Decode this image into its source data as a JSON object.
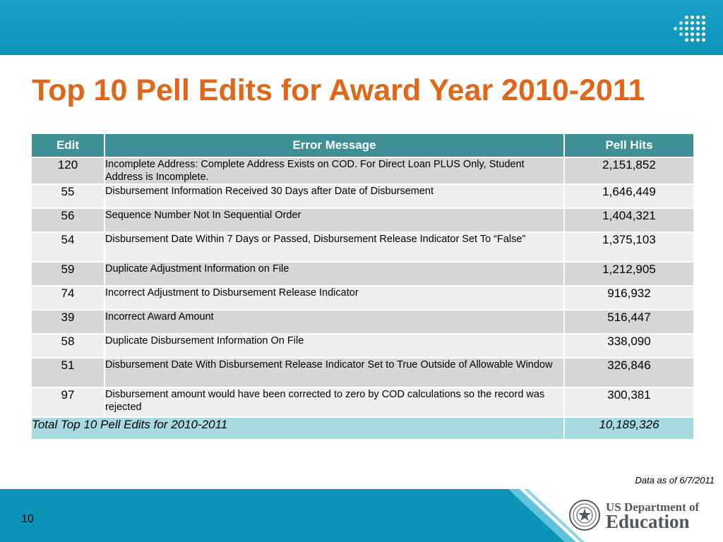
{
  "slide": {
    "title": "Top 10 Pell Edits for Award Year 2010-2011",
    "page_number": "10",
    "data_note": "Data as of 6/7/2011"
  },
  "table": {
    "headers": [
      "Edit",
      "Error Message",
      "Pell Hits"
    ],
    "rows": [
      {
        "edit": "120",
        "message": "Incomplete Address: Complete Address Exists on COD.  For Direct Loan PLUS Only, Student Address is Incomplete.",
        "hits": "2,151,852"
      },
      {
        "edit": "55",
        "message": "Disbursement Information Received 30 Days after Date of Disbursement",
        "hits": "1,646,449"
      },
      {
        "edit": "56",
        "message": "Sequence Number Not In Sequential Order",
        "hits": "1,404,321"
      },
      {
        "edit": "54",
        "message": "Disbursement Date Within 7 Days or Passed, Disbursement Release Indicator Set To “False”",
        "hits": "1,375,103"
      },
      {
        "edit": "59",
        "message": "Duplicate Adjustment Information on File",
        "hits": "1,212,905"
      },
      {
        "edit": "74",
        "message": "Incorrect Adjustment to Disbursement Release Indicator",
        "hits": "916,932"
      },
      {
        "edit": "39",
        "message": "Incorrect Award Amount",
        "hits": "516,447"
      },
      {
        "edit": "58",
        "message": "Duplicate Disbursement Information On File",
        "hits": "338,090"
      },
      {
        "edit": "51",
        "message": "Disbursement Date With Disbursement Release Indicator Set to True Outside of Allowable Window",
        "hits": "326,846"
      },
      {
        "edit": "97",
        "message": "Disbursement amount would have been corrected to zero by COD calculations so the record was rejected",
        "hits": "300,381"
      }
    ],
    "total": {
      "label": "Total Top 10 Pell Edits for 2010-2011",
      "value": "10,189,326"
    }
  },
  "logo": {
    "line1": "US Department of",
    "line2": "Education"
  },
  "colors": {
    "top_bar": "#0b94b8",
    "title": "#e0661a",
    "header": "#3f8f96",
    "row_dark": "#d6d6d6",
    "row_light": "#efefef",
    "total_row": "#a8dbe0"
  }
}
